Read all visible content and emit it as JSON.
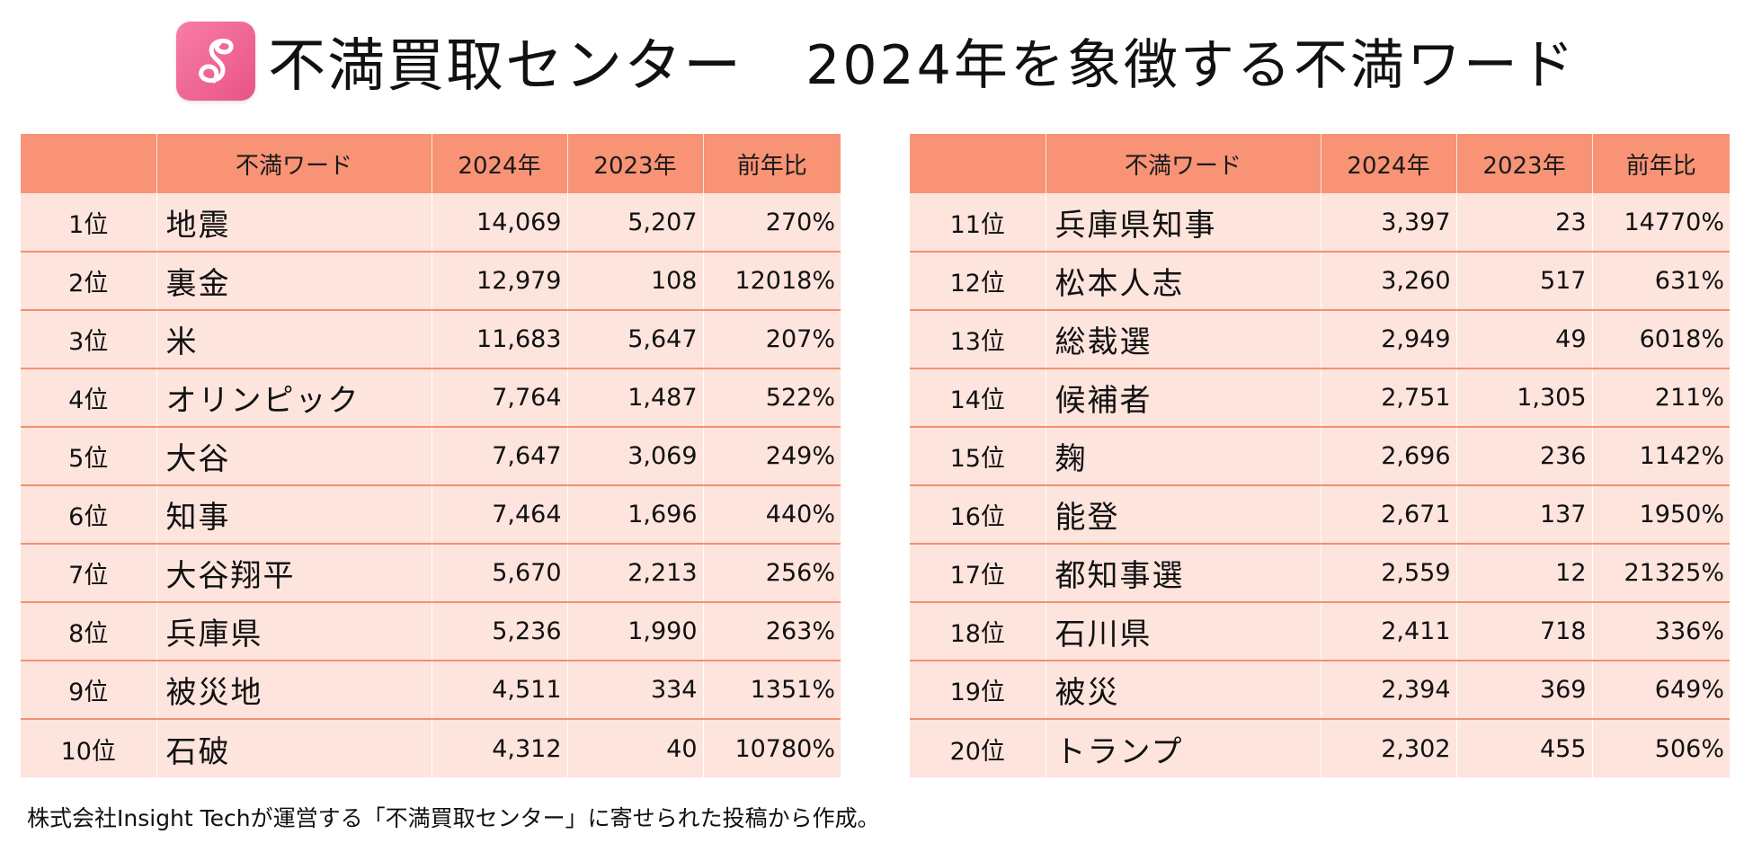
{
  "header": {
    "logo_icon": "infinity-s-logo-icon",
    "brand": "不満買取センター",
    "headline": "2024年を象徴する不満ワード"
  },
  "colors": {
    "header_bg": "#f89376",
    "row_bg": "#fde4dd",
    "row_line": "#f3906f",
    "logo_pink": "#ef6391"
  },
  "columns": {
    "rank": "",
    "word": "不満ワード",
    "y2024": "2024年",
    "y2023": "2023年",
    "ratio": "前年比"
  },
  "left_rows": [
    {
      "rank": "1位",
      "word": "地震",
      "y2024": "14,069",
      "y2023": "5,207",
      "ratio": "270%"
    },
    {
      "rank": "2位",
      "word": "裏金",
      "y2024": "12,979",
      "y2023": "108",
      "ratio": "12018%"
    },
    {
      "rank": "3位",
      "word": "米",
      "y2024": "11,683",
      "y2023": "5,647",
      "ratio": "207%"
    },
    {
      "rank": "4位",
      "word": "オリンピック",
      "y2024": "7,764",
      "y2023": "1,487",
      "ratio": "522%"
    },
    {
      "rank": "5位",
      "word": "大谷",
      "y2024": "7,647",
      "y2023": "3,069",
      "ratio": "249%"
    },
    {
      "rank": "6位",
      "word": "知事",
      "y2024": "7,464",
      "y2023": "1,696",
      "ratio": "440%"
    },
    {
      "rank": "7位",
      "word": "大谷翔平",
      "y2024": "5,670",
      "y2023": "2,213",
      "ratio": "256%"
    },
    {
      "rank": "8位",
      "word": "兵庫県",
      "y2024": "5,236",
      "y2023": "1,990",
      "ratio": "263%"
    },
    {
      "rank": "9位",
      "word": "被災地",
      "y2024": "4,511",
      "y2023": "334",
      "ratio": "1351%"
    },
    {
      "rank": "10位",
      "word": "石破",
      "y2024": "4,312",
      "y2023": "40",
      "ratio": "10780%"
    }
  ],
  "right_rows": [
    {
      "rank": "11位",
      "word": "兵庫県知事",
      "y2024": "3,397",
      "y2023": "23",
      "ratio": "14770%"
    },
    {
      "rank": "12位",
      "word": "松本人志",
      "y2024": "3,260",
      "y2023": "517",
      "ratio": "631%"
    },
    {
      "rank": "13位",
      "word": "総裁選",
      "y2024": "2,949",
      "y2023": "49",
      "ratio": "6018%"
    },
    {
      "rank": "14位",
      "word": "候補者",
      "y2024": "2,751",
      "y2023": "1,305",
      "ratio": "211%"
    },
    {
      "rank": "15位",
      "word": "麹",
      "y2024": "2,696",
      "y2023": "236",
      "ratio": "1142%"
    },
    {
      "rank": "16位",
      "word": "能登",
      "y2024": "2,671",
      "y2023": "137",
      "ratio": "1950%"
    },
    {
      "rank": "17位",
      "word": "都知事選",
      "y2024": "2,559",
      "y2023": "12",
      "ratio": "21325%"
    },
    {
      "rank": "18位",
      "word": "石川県",
      "y2024": "2,411",
      "y2023": "718",
      "ratio": "336%"
    },
    {
      "rank": "19位",
      "word": "被災",
      "y2024": "2,394",
      "y2023": "369",
      "ratio": "649%"
    },
    {
      "rank": "20位",
      "word": "トランプ",
      "y2024": "2,302",
      "y2023": "455",
      "ratio": "506%"
    }
  ],
  "footnote": "株式会社Insight Techが運営する「不満買取センター」に寄せられた投稿から作成。"
}
